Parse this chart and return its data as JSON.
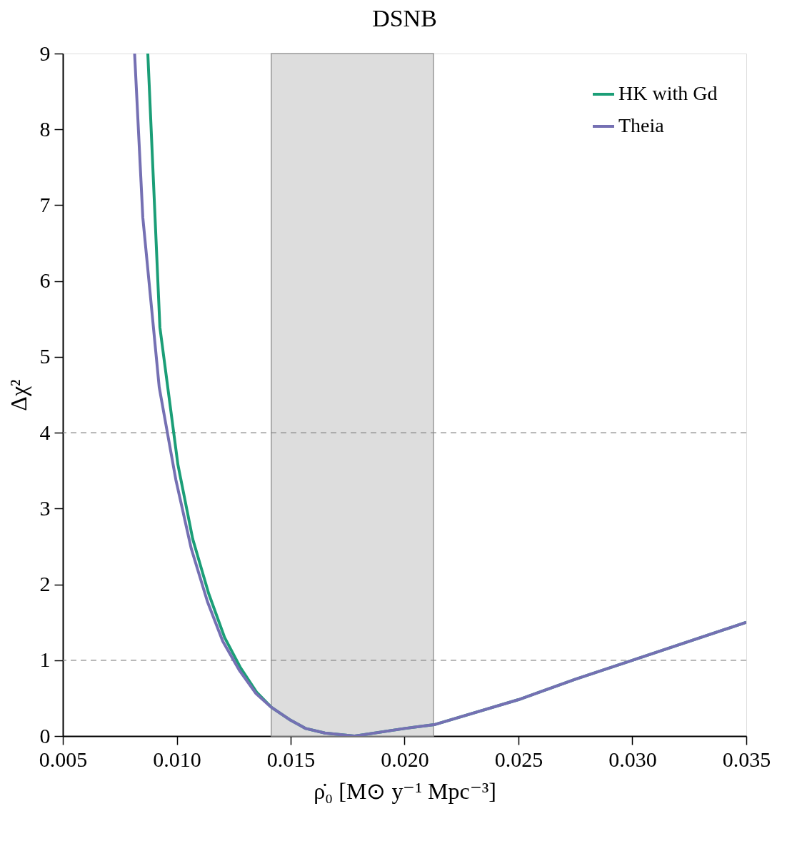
{
  "chart_data": {
    "type": "line",
    "title": "DSNB",
    "xlabel": "ρ̇₀ [M⊙ y⁻¹ Mpc⁻³]",
    "ylabel": "Δχ²",
    "xlim": [
      0.005,
      0.035
    ],
    "xticks": [
      0.005,
      {
        "value": 0.01,
        "label": "0.010"
      },
      0.015,
      {
        "value": 0.02,
        "label": "0.020"
      },
      0.025,
      {
        "value": 0.03,
        "label": "0.030"
      },
      0.035
    ],
    "ylim": [
      0,
      9
    ],
    "yticks": [
      0,
      1,
      2,
      3,
      4,
      5,
      6,
      7,
      8,
      9
    ],
    "grid": false,
    "legend": "top right",
    "line_style": "solid",
    "marker": "none",
    "series": [
      {
        "name": "HK with Gd",
        "color": "#1b9e77",
        "x": [
          0.00873,
          0.00926,
          0.01005,
          0.0107,
          0.0114,
          0.0121,
          0.0128,
          0.0135,
          0.01415,
          0.01494,
          0.01566,
          0.0165,
          0.0178,
          0.02,
          0.0213,
          0.025,
          0.0275,
          0.03,
          0.035
        ],
        "values": [
          9.0,
          5.39,
          3.58,
          2.6,
          1.88,
          1.3,
          0.9,
          0.58,
          0.38,
          0.22,
          0.1,
          0.04,
          0.0,
          0.1,
          0.15,
          0.48,
          0.75,
          1.0,
          1.5
        ]
      },
      {
        "name": "Theia",
        "color": "#7570b3",
        "x": [
          0.00815,
          0.00851,
          0.00923,
          0.00996,
          0.01063,
          0.01135,
          0.01202,
          0.01274,
          0.01348,
          0.01415,
          0.01494,
          0.01566,
          0.0165,
          0.0178,
          0.02,
          0.0213,
          0.025,
          0.0275,
          0.03,
          0.035
        ],
        "values": [
          9.0,
          6.84,
          4.6,
          3.38,
          2.48,
          1.77,
          1.25,
          0.87,
          0.56,
          0.38,
          0.22,
          0.1,
          0.04,
          0.0,
          0.1,
          0.15,
          0.48,
          0.75,
          1.0,
          1.5
        ]
      }
    ],
    "ref_lines": [
      {
        "axis": "y",
        "value": 1,
        "color": "#888888",
        "line_style": "dashed"
      },
      {
        "axis": "y",
        "value": 4,
        "color": "#888888",
        "line_style": "dashed"
      }
    ],
    "bands": [
      {
        "axis": "x",
        "from": 0.01415,
        "to": 0.02127,
        "color": "#dddddd"
      }
    ]
  }
}
